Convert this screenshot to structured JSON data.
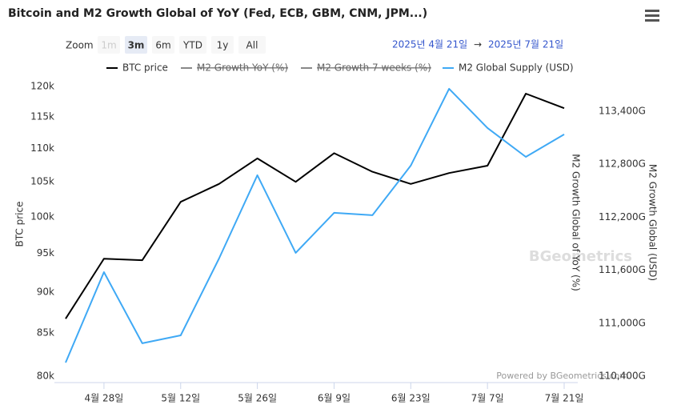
{
  "toolbar": {
    "zoom_label": "Zoom",
    "buttons": [
      "1m",
      "3m",
      "6m",
      "YTD",
      "1y",
      "All"
    ],
    "selected": 1,
    "disabled": [
      0
    ],
    "from": "2025년 4월 21일",
    "separator": "→",
    "to": "2025년 7월 21일"
  },
  "credits": "Powered by BGeometrics.com",
  "watermark": "BGeometrics",
  "chart_data": {
    "type": "line",
    "title": "Bitcoin and M2 Growth Global of YoY (Fed, ECB, GBM, CNM, JPM...)",
    "categories": [
      null,
      "4월 28일",
      null,
      "5월 12일",
      null,
      "5월 26일",
      null,
      "6월 9일",
      null,
      "6월 23일",
      null,
      "7월 7일",
      null,
      "7월 21일"
    ],
    "y_label": "BTC price",
    "y_mid_label": "M2 Growth Global of YoY (%)",
    "y2_label": "M2 Growth Global (USD)",
    "log_y": true,
    "grid": false,
    "ylim": [
      80000,
      120000
    ],
    "yticks": [
      {
        "value": 80000,
        "label": "80k"
      },
      {
        "value": 85000,
        "label": "85k"
      },
      {
        "value": 90000,
        "label": "90k"
      },
      {
        "value": 95000,
        "label": "95k"
      },
      {
        "value": 100000,
        "label": "100k"
      },
      {
        "value": 105000,
        "label": "105k"
      },
      {
        "value": 110000,
        "label": "110k"
      },
      {
        "value": 115000,
        "label": "115k"
      },
      {
        "value": 120000,
        "label": "120k"
      }
    ],
    "y2lim": [
      110400,
      113680
    ],
    "y2ticks": [
      {
        "value": 110400,
        "label": "110,400G"
      },
      {
        "value": 111000,
        "label": "111,000G"
      },
      {
        "value": 111600,
        "label": "111,600G"
      },
      {
        "value": 112200,
        "label": "112,200G"
      },
      {
        "value": 112800,
        "label": "112,800G"
      },
      {
        "value": 113400,
        "label": "113,400G"
      }
    ],
    "series": [
      {
        "name": "BTC price",
        "color": "#000000",
        "visible": true,
        "values": [
          86700,
          94300,
          94100,
          102100,
          104700,
          108500,
          105000,
          109300,
          106500,
          104700,
          106300,
          107400,
          118800,
          116400
        ]
      },
      {
        "name": "M2 Growth YoY (%)",
        "visible": false
      },
      {
        "name": "M2 Growth 7 weeks (%)",
        "visible": false
      },
      {
        "name": "M2 Global Supply (USD)",
        "color": "#3fa9f5",
        "visible": true,
        "axis": "y2",
        "values": [
          110554,
          111578,
          110772,
          110862,
          111732,
          112675,
          111796,
          112249,
          112222,
          112784,
          113654,
          113210,
          112883,
          113137
        ]
      }
    ]
  }
}
